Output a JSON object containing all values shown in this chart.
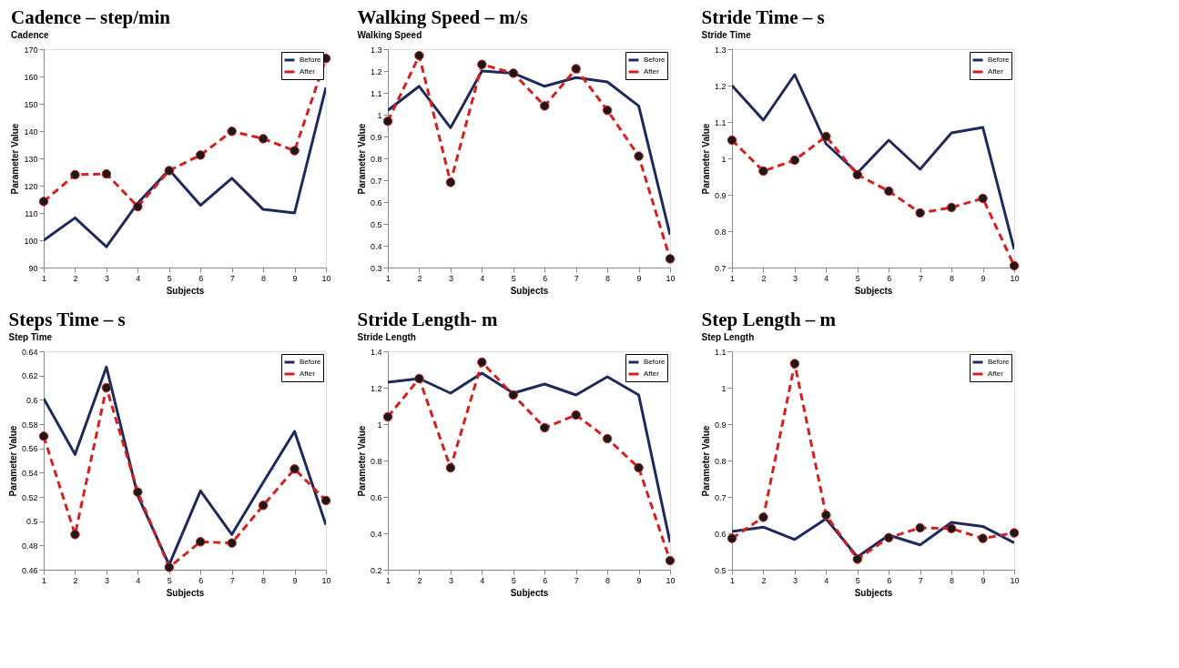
{
  "chart_data": [
    {
      "type": "line",
      "title": "Cadence – step/min",
      "subtitle": "Cadence",
      "xlabel": "Subjects",
      "ylabel": "Parameter Value",
      "x": [
        1,
        2,
        3,
        4,
        5,
        6,
        7,
        8,
        9,
        10
      ],
      "xlim": [
        1,
        10
      ],
      "xticks": [
        1,
        2,
        3,
        4,
        5,
        6,
        7,
        8,
        9,
        10
      ],
      "ylim": [
        90,
        170
      ],
      "yticks": [
        90,
        100,
        110,
        120,
        130,
        140,
        150,
        160,
        170
      ],
      "grid": false,
      "legend": "top right",
      "series": [
        {
          "name": "Before",
          "color": "#1f2a5c",
          "marker": "none",
          "line_style": "solid",
          "values": [
            100,
            108.2,
            97.6,
            113.6,
            125.8,
            112.8,
            122.7,
            111.3,
            110,
            156
          ]
        },
        {
          "name": "After",
          "color": "#d62020",
          "marker": "circle",
          "line_style": "dashed",
          "values": [
            114.2,
            124,
            124.3,
            112.3,
            125.5,
            131.2,
            139.9,
            137.2,
            132.8,
            166.6
          ]
        }
      ]
    },
    {
      "type": "line",
      "title": "Walking Speed – m/s",
      "subtitle": "Walking Speed",
      "xlabel": "Subjects",
      "ylabel": "Parameter Value",
      "x": [
        1,
        2,
        3,
        4,
        5,
        6,
        7,
        8,
        9,
        10
      ],
      "xlim": [
        1,
        10
      ],
      "xticks": [
        1,
        2,
        3,
        4,
        5,
        6,
        7,
        8,
        9,
        10
      ],
      "ylim": [
        0.3,
        1.3
      ],
      "yticks": [
        0.3,
        0.4,
        0.5,
        0.6,
        0.7,
        0.8,
        0.9,
        1,
        1.1,
        1.2,
        1.3
      ],
      "grid": false,
      "legend": "top right",
      "series": [
        {
          "name": "Before",
          "color": "#1f2a5c",
          "marker": "none",
          "line_style": "solid",
          "values": [
            1.02,
            1.13,
            0.94,
            1.2,
            1.19,
            1.13,
            1.17,
            1.15,
            1.04,
            0.45
          ]
        },
        {
          "name": "After",
          "color": "#d62020",
          "marker": "circle",
          "line_style": "dashed",
          "values": [
            0.97,
            1.27,
            0.69,
            1.23,
            1.19,
            1.04,
            1.21,
            1.02,
            0.81,
            0.34
          ]
        }
      ]
    },
    {
      "type": "line",
      "title": "Stride Time – s",
      "subtitle": "Stride Time",
      "xlabel": "Subjects",
      "ylabel": "Parameter Value",
      "x": [
        1,
        2,
        3,
        4,
        5,
        6,
        7,
        8,
        9,
        10
      ],
      "xlim": [
        1,
        10
      ],
      "xticks": [
        1,
        2,
        3,
        4,
        5,
        6,
        7,
        8,
        9,
        10
      ],
      "ylim": [
        0.7,
        1.3
      ],
      "yticks": [
        0.7,
        0.8,
        0.9,
        1,
        1.1,
        1.2,
        1.3
      ],
      "grid": false,
      "legend": "top right",
      "series": [
        {
          "name": "Before",
          "color": "#1f2a5c",
          "marker": "none",
          "line_style": "solid",
          "values": [
            1.2,
            1.105,
            1.23,
            1.04,
            0.96,
            1.05,
            0.97,
            1.07,
            1.085,
            0.75
          ]
        },
        {
          "name": "After",
          "color": "#d62020",
          "marker": "circle",
          "line_style": "dashed",
          "values": [
            1.05,
            0.965,
            0.995,
            1.06,
            0.955,
            0.91,
            0.85,
            0.865,
            0.89,
            0.705
          ]
        }
      ]
    },
    {
      "type": "line",
      "title": "Steps Time – s",
      "subtitle": "Step Time",
      "xlabel": "Subjects",
      "ylabel": "Parameter Value",
      "x": [
        1,
        2,
        3,
        4,
        5,
        6,
        7,
        8,
        9,
        10
      ],
      "xlim": [
        1,
        10
      ],
      "xticks": [
        1,
        2,
        3,
        4,
        5,
        6,
        7,
        8,
        9,
        10
      ],
      "ylim": [
        0.46,
        0.64
      ],
      "yticks": [
        0.46,
        0.48,
        0.5,
        0.52,
        0.54,
        0.56,
        0.58,
        0.6,
        0.62,
        0.64
      ],
      "grid": false,
      "legend": "top right",
      "series": [
        {
          "name": "Before",
          "color": "#1f2a5c",
          "marker": "none",
          "line_style": "solid",
          "values": [
            0.601,
            0.555,
            0.627,
            0.521,
            0.464,
            0.525,
            0.489,
            0.532,
            0.574,
            0.497
          ]
        },
        {
          "name": "After",
          "color": "#d62020",
          "marker": "circle",
          "line_style": "dashed",
          "values": [
            0.57,
            0.489,
            0.61,
            0.524,
            0.462,
            0.483,
            0.482,
            0.513,
            0.543,
            0.517
          ]
        }
      ]
    },
    {
      "type": "line",
      "title": "Stride Length- m",
      "subtitle": "Stride Length",
      "xlabel": "Subjects",
      "ylabel": "Parameter Value",
      "x": [
        1,
        2,
        3,
        4,
        5,
        6,
        7,
        8,
        9,
        10
      ],
      "xlim": [
        1,
        10
      ],
      "xticks": [
        1,
        2,
        3,
        4,
        5,
        6,
        7,
        8,
        9,
        10
      ],
      "ylim": [
        0.2,
        1.4
      ],
      "yticks": [
        0.2,
        0.4,
        0.6,
        0.8,
        1,
        1.2,
        1.4
      ],
      "grid": false,
      "legend": "top right",
      "series": [
        {
          "name": "Before",
          "color": "#1f2a5c",
          "marker": "none",
          "line_style": "solid",
          "values": [
            1.23,
            1.25,
            1.17,
            1.28,
            1.17,
            1.22,
            1.16,
            1.26,
            1.16,
            0.35
          ]
        },
        {
          "name": "After",
          "color": "#d62020",
          "marker": "circle",
          "line_style": "dashed",
          "values": [
            1.04,
            1.25,
            0.76,
            1.34,
            1.16,
            0.98,
            1.05,
            0.92,
            0.76,
            0.25
          ]
        }
      ]
    },
    {
      "type": "line",
      "title": "Step Length – m",
      "subtitle": "Step Length",
      "xlabel": "Subjects",
      "ylabel": "Parameter Value",
      "x": [
        1,
        2,
        3,
        4,
        5,
        6,
        7,
        8,
        9,
        10
      ],
      "xlim": [
        1,
        10
      ],
      "xticks": [
        1,
        2,
        3,
        4,
        5,
        6,
        7,
        8,
        9,
        10
      ],
      "ylim": [
        0.5,
        1.1
      ],
      "yticks": [
        0.5,
        0.6,
        0.7,
        0.8,
        0.9,
        1,
        1.1
      ],
      "grid": false,
      "legend": "top right",
      "series": [
        {
          "name": "Before",
          "color": "#1f2a5c",
          "marker": "none",
          "line_style": "solid",
          "values": [
            0.605,
            0.617,
            0.583,
            0.64,
            0.535,
            0.595,
            0.568,
            0.63,
            0.619,
            0.574
          ]
        },
        {
          "name": "After",
          "color": "#d62020",
          "marker": "circle",
          "line_style": "dashed",
          "values": [
            0.586,
            0.644,
            1.066,
            0.65,
            0.529,
            0.588,
            0.615,
            0.613,
            0.586,
            0.601
          ]
        }
      ]
    }
  ]
}
